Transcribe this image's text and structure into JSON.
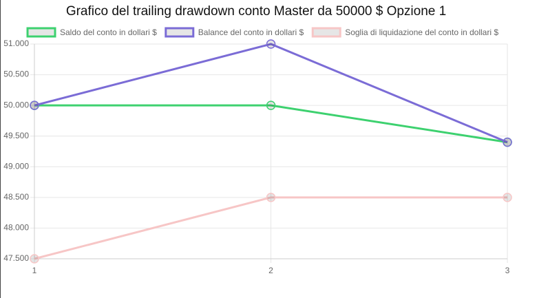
{
  "chart_data": {
    "type": "line",
    "title": "Grafico del trailing drawdown conto Master da 50000 $ Opzione 1",
    "x": [
      1,
      2,
      3
    ],
    "xlim": [
      1,
      3
    ],
    "xticks": [
      1,
      2,
      3
    ],
    "ylim": [
      47500,
      51000
    ],
    "yticks": [
      {
        "value": 47500,
        "label": "47.500"
      },
      {
        "value": 48000,
        "label": "48.000"
      },
      {
        "value": 48500,
        "label": "48.500"
      },
      {
        "value": 49000,
        "label": "49.000"
      },
      {
        "value": 49500,
        "label": "49.500"
      },
      {
        "value": 50000,
        "label": "50.000"
      },
      {
        "value": 50500,
        "label": "50.500"
      },
      {
        "value": 51000,
        "label": "51.000"
      }
    ],
    "grid": true,
    "legend": "top",
    "series": [
      {
        "name": "Saldo del conto in dollari $",
        "color": "#3dd16f",
        "values": [
          50000,
          50000,
          49400
        ]
      },
      {
        "name": "Balance del conto in dollari $",
        "color": "#7b6cd6",
        "values": [
          50000,
          51000,
          49400
        ]
      },
      {
        "name": "Soglia di liquidazione del conto in dollari $",
        "color": "#f7c6c6",
        "values": [
          47500,
          48500,
          48500
        ]
      }
    ]
  }
}
